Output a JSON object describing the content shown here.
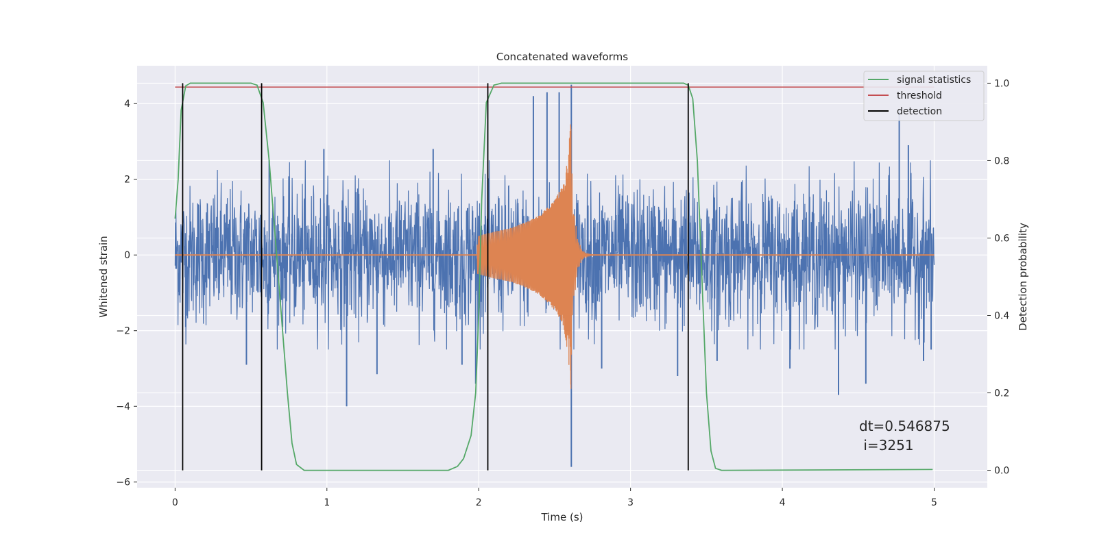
{
  "chart_data": {
    "type": "line",
    "title": "Concatenated waveforms",
    "xlabel": "Time (s)",
    "ylabel": "Whitened strain",
    "y2label": "Detection probability",
    "xlim": [
      -0.25,
      5.35
    ],
    "ylim": [
      -6.15,
      5.0
    ],
    "y2lim": [
      -0.045,
      1.045
    ],
    "xticks": [
      0,
      1,
      2,
      3,
      4,
      5
    ],
    "yticks": [
      -6,
      -4,
      -2,
      0,
      2,
      4
    ],
    "y2ticks": [
      0.0,
      0.2,
      0.4,
      0.6,
      0.8,
      1.0
    ],
    "xtick_labels": [
      "0",
      "1",
      "2",
      "3",
      "4",
      "5"
    ],
    "ytick_labels": [
      "−6",
      "−4",
      "−2",
      "0",
      "2",
      "4"
    ],
    "y2tick_labels": [
      "0.0",
      "0.2",
      "0.4",
      "0.6",
      "0.8",
      "1.0"
    ],
    "grid": true,
    "legend_position": "top-right",
    "legend": [
      {
        "label": "signal statistics",
        "color": "#55a868"
      },
      {
        "label": "threshold",
        "color": "#c44e52"
      },
      {
        "label": "detection",
        "color": "#000000"
      }
    ],
    "colors": {
      "noise": "#4c72b0",
      "template": "#dd8452",
      "statistic": "#55a868",
      "threshold": "#c44e52",
      "detection": "#000000",
      "plot_bg": "#eaeaf2"
    },
    "noise_strain": {
      "x_range": [
        0,
        5
      ],
      "typical_amplitude": 1.2,
      "typical_peak": 2.5,
      "notable_peaks": [
        {
          "x": 0.07,
          "y": -1.9
        },
        {
          "x": 0.62,
          "y": 2.5
        },
        {
          "x": 0.47,
          "y": -2.9
        },
        {
          "x": 0.98,
          "y": 2.8
        },
        {
          "x": 1.13,
          "y": -4.0
        },
        {
          "x": 1.33,
          "y": -3.15
        },
        {
          "x": 1.7,
          "y": 2.8
        },
        {
          "x": 1.89,
          "y": -2.9
        },
        {
          "x": 1.98,
          "y": -3.4
        },
        {
          "x": 2.36,
          "y": 4.2
        },
        {
          "x": 2.45,
          "y": 4.3
        },
        {
          "x": 2.53,
          "y": 4.3
        },
        {
          "x": 2.61,
          "y": 4.5
        },
        {
          "x": 2.61,
          "y": -5.6
        },
        {
          "x": 2.81,
          "y": -3.0
        },
        {
          "x": 3.31,
          "y": -3.2
        },
        {
          "x": 3.57,
          "y": -2.8
        },
        {
          "x": 4.05,
          "y": -3.0
        },
        {
          "x": 4.37,
          "y": -3.7
        },
        {
          "x": 4.55,
          "y": -3.4
        },
        {
          "x": 4.77,
          "y": 3.8
        },
        {
          "x": 4.83,
          "y": 2.9
        },
        {
          "x": 4.93,
          "y": -2.8
        },
        {
          "x": 4.98,
          "y": -2.5
        }
      ]
    },
    "chirp_template": {
      "start": 1.99,
      "end": 2.61,
      "ringdown_end": 2.9,
      "envelope": [
        [
          1.99,
          0.5
        ],
        [
          2.1,
          0.62
        ],
        [
          2.2,
          0.7
        ],
        [
          2.3,
          0.85
        ],
        [
          2.4,
          1.05
        ],
        [
          2.5,
          1.45
        ],
        [
          2.56,
          1.9
        ],
        [
          2.59,
          2.7
        ],
        [
          2.61,
          3.7
        ]
      ]
    },
    "signal_statistics": [
      [
        0.0,
        0.65
      ],
      [
        0.02,
        0.75
      ],
      [
        0.04,
        0.93
      ],
      [
        0.07,
        0.993
      ],
      [
        0.1,
        1.0
      ],
      [
        0.5,
        1.0
      ],
      [
        0.54,
        0.995
      ],
      [
        0.58,
        0.95
      ],
      [
        0.62,
        0.8
      ],
      [
        0.66,
        0.6
      ],
      [
        0.7,
        0.4
      ],
      [
        0.74,
        0.2
      ],
      [
        0.77,
        0.07
      ],
      [
        0.8,
        0.015
      ],
      [
        0.85,
        0.0
      ],
      [
        1.8,
        0.0
      ],
      [
        1.86,
        0.01
      ],
      [
        1.9,
        0.03
      ],
      [
        1.95,
        0.09
      ],
      [
        1.98,
        0.2
      ],
      [
        2.0,
        0.4
      ],
      [
        2.02,
        0.7
      ],
      [
        2.05,
        0.95
      ],
      [
        2.1,
        0.995
      ],
      [
        2.15,
        1.0
      ],
      [
        3.35,
        1.0
      ],
      [
        3.38,
        0.995
      ],
      [
        3.41,
        0.96
      ],
      [
        3.44,
        0.8
      ],
      [
        3.47,
        0.5
      ],
      [
        3.5,
        0.2
      ],
      [
        3.53,
        0.05
      ],
      [
        3.56,
        0.005
      ],
      [
        3.6,
        0.0
      ],
      [
        4.99,
        0.002
      ]
    ],
    "threshold": 0.99,
    "threshold_x": [
      0,
      5
    ],
    "detections": [
      0.05,
      0.57,
      2.06,
      3.38
    ],
    "annotation_line1": "dt=0.546875",
    "annotation_line2": " i=3251"
  }
}
